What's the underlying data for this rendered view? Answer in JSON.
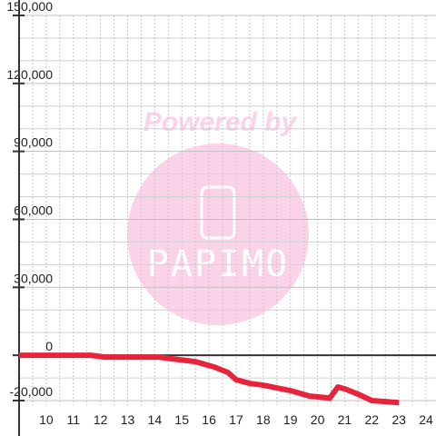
{
  "chart_data": {
    "type": "line",
    "watermark": [
      "Powered by",
      "PAPIMO"
    ],
    "x": [
      9,
      11.65,
      12.15,
      14.15,
      14.66,
      15.5,
      16.2,
      16.7,
      17.0,
      17.5,
      18.0,
      19.0,
      19.7,
      20.45,
      20.75,
      21.0,
      21.5,
      22.0,
      23.0
    ],
    "series": [
      {
        "color": "#e8243c",
        "values": [
          0,
          0,
          -800,
          -800,
          -1600,
          -2800,
          -5200,
          -7600,
          -10800,
          -12400,
          -13200,
          -15600,
          -18000,
          -18900,
          -14000,
          -14800,
          -17200,
          -20000,
          -20900
        ]
      }
    ],
    "xlim": [
      9,
      24.4
    ],
    "ylim": [
      -22000,
      150000
    ],
    "xticks": [
      10,
      11,
      12,
      13,
      14,
      15,
      16,
      17,
      18,
      19,
      20,
      21,
      22,
      23,
      24
    ],
    "yticks": [
      {
        "value": -20000,
        "label": "-20,000"
      },
      0,
      {
        "value": 30000,
        "label": "30,000"
      },
      {
        "value": 60000,
        "label": "60,000"
      },
      {
        "value": 90000,
        "label": "90,000"
      },
      {
        "value": 120000,
        "label": "120,000"
      },
      {
        "value": 150000,
        "label": "150,000"
      }
    ],
    "yminorticks": [
      -20000,
      -10000,
      10000,
      20000,
      40000,
      50000,
      70000,
      80000,
      100000,
      110000,
      130000,
      140000
    ],
    "xminorticks": [
      9.5,
      10,
      10.5,
      11,
      11.5,
      12,
      12.5,
      13,
      13.5,
      14,
      14.5,
      15,
      15.5,
      16,
      16.5,
      17,
      17.5,
      18,
      18.5,
      19,
      19.5,
      20,
      20.5,
      21,
      21.5,
      22,
      22.5,
      23,
      23.5,
      24
    ],
    "grid": true
  }
}
